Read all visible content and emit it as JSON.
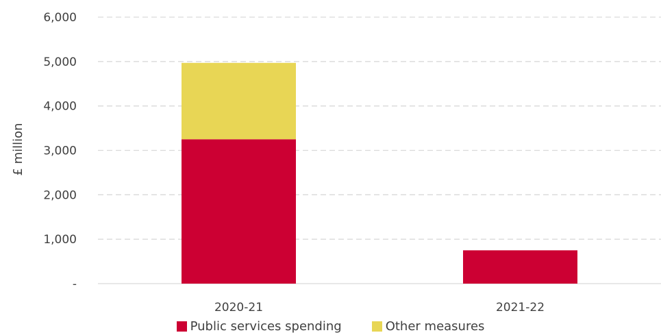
{
  "chart_data": {
    "type": "bar",
    "stacked": true,
    "categories": [
      "2020-21",
      "2021-22"
    ],
    "series": [
      {
        "name": "Public services spending",
        "values": [
          3250,
          750
        ],
        "color": "#cc0033"
      },
      {
        "name": "Other measures",
        "values": [
          1720,
          0
        ],
        "color": "#e8d655"
      }
    ],
    "ylabel": "£ million",
    "ylim": [
      0,
      6000
    ],
    "yticks": [
      0,
      1000,
      2000,
      3000,
      4000,
      5000,
      6000
    ],
    "ytick_labels": [
      "-",
      "1,000",
      "2,000",
      "3,000",
      "4,000",
      "5,000",
      "6,000"
    ],
    "grid": "horizontal dashed",
    "legend_position": "bottom"
  }
}
